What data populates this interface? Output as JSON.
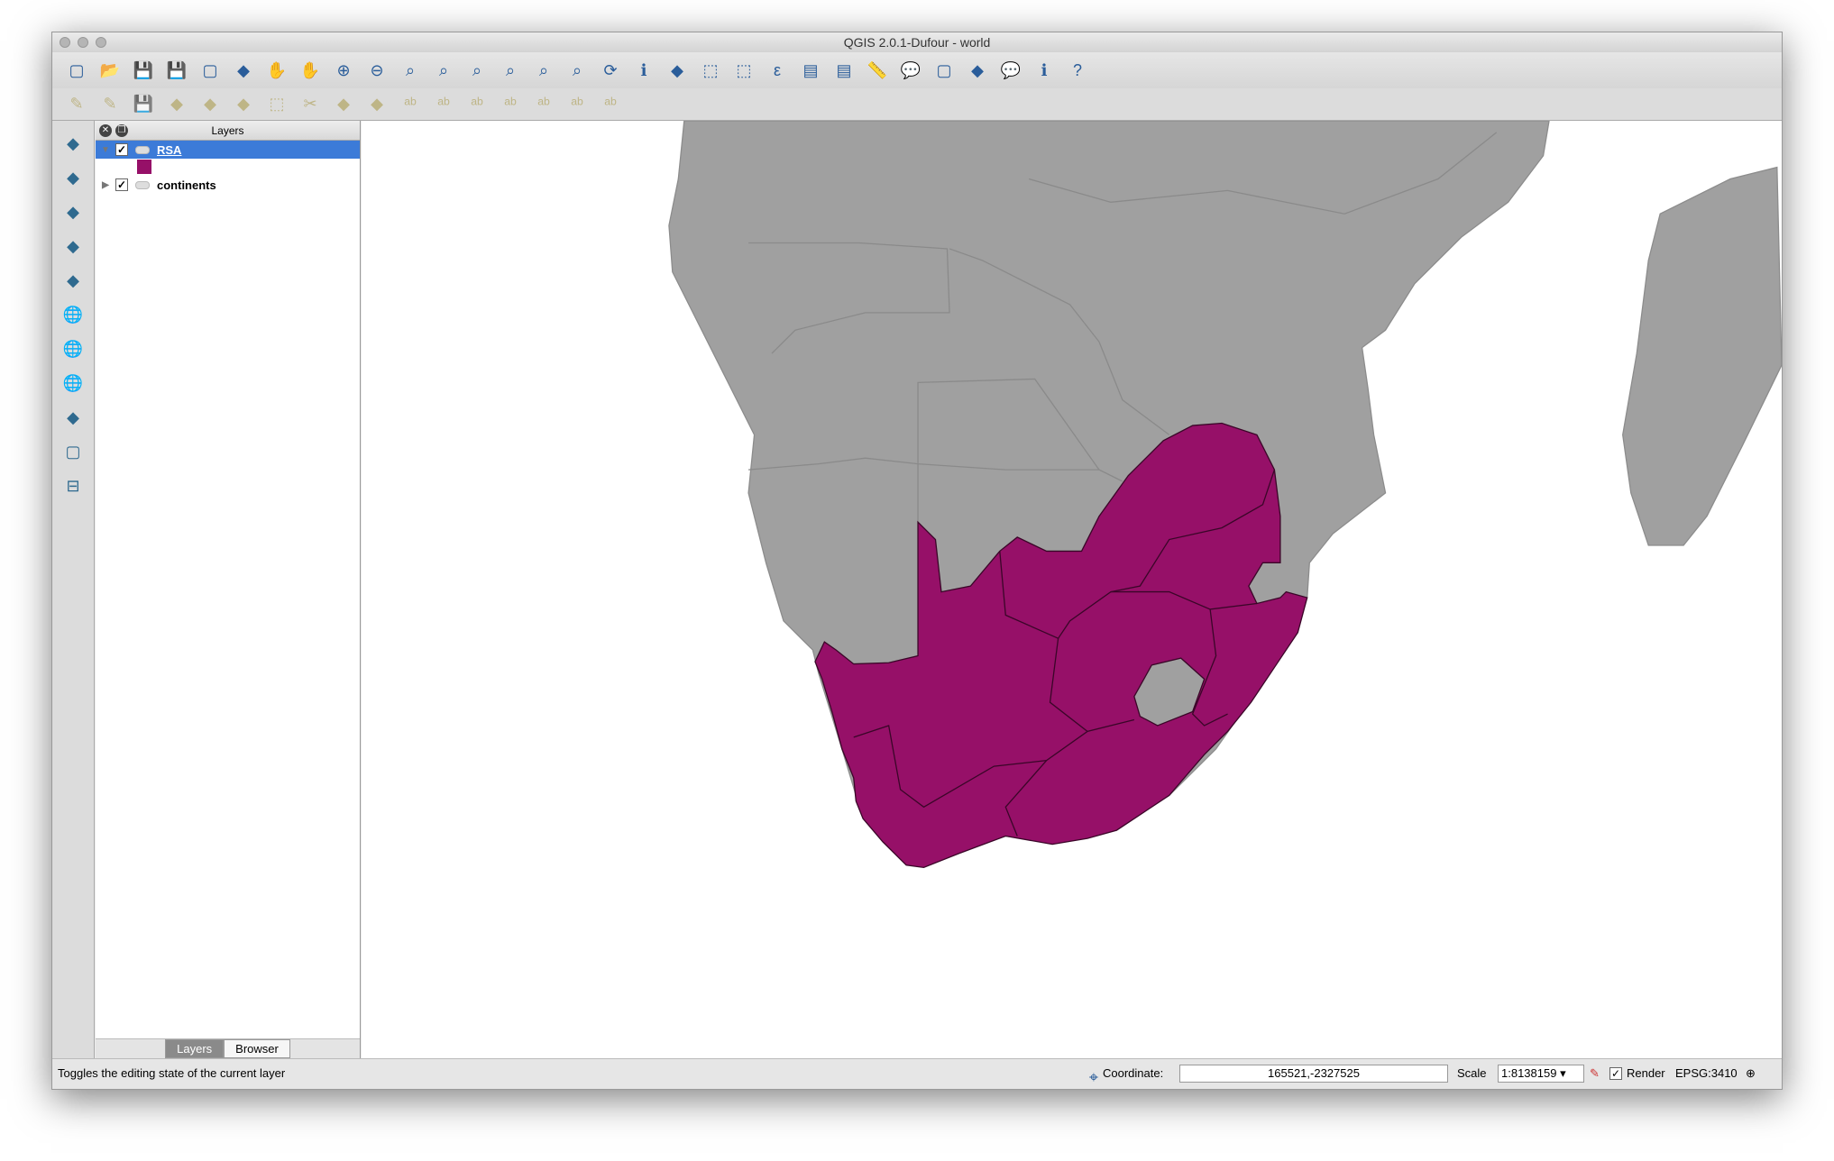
{
  "window": {
    "title": "QGIS 2.0.1-Dufour - world"
  },
  "toolbar1": {
    "icons": [
      "new-project-icon",
      "open-project-icon",
      "save-project-icon",
      "save-as-icon",
      "new-print-composer-icon",
      "composer-manager-icon",
      "pan-icon",
      "pan-to-selection-icon",
      "zoom-in-icon",
      "zoom-out-icon",
      "zoom-actual-icon",
      "zoom-full-icon",
      "zoom-to-selection-icon",
      "zoom-to-layer-icon",
      "zoom-last-icon",
      "zoom-next-icon",
      "refresh-icon",
      "identify-icon",
      "action-icon",
      "select-icon",
      "deselect-icon",
      "expression-icon",
      "attribute-table-icon",
      "statistics-icon",
      "measure-icon",
      "map-tips-icon",
      "new-bookmark-icon",
      "show-bookmarks-icon",
      "text-annotation-icon",
      "help-icon",
      "whats-this-icon"
    ]
  },
  "toolbar2": {
    "icons": [
      "toggle-editing-icon",
      "current-edits-icon",
      "save-edits-icon",
      "add-feature-icon",
      "move-feature-icon",
      "node-tool-icon",
      "delete-selected-icon",
      "cut-features-icon",
      "copy-features-icon",
      "paste-features-icon",
      "label-icon",
      "label-pin-icon",
      "label-show-hide-icon",
      "label-move-icon",
      "label-rotate-icon",
      "label-change-icon",
      "label-properties-icon"
    ]
  },
  "left_toolbar": {
    "icons": [
      "add-vector-layer-icon",
      "add-raster-layer-icon",
      "add-postgis-layer-icon",
      "add-spatialite-layer-icon",
      "add-mssql-layer-icon",
      "add-wms-layer-icon",
      "add-wcs-layer-icon",
      "add-wfs-layer-icon",
      "add-delimited-text-icon",
      "new-layer-icon",
      "remove-layer-icon"
    ]
  },
  "layers_panel": {
    "title": "Layers",
    "items": [
      {
        "name": "RSA",
        "checked": true,
        "selected": true,
        "color": "#961068"
      },
      {
        "name": "continents",
        "checked": true,
        "selected": false
      }
    ],
    "tabs": [
      "Layers",
      "Browser"
    ],
    "active_tab": "Layers"
  },
  "map": {
    "rsa_color": "#961068",
    "land_color": "#a0a0a0",
    "ocean_color": "#ffffff"
  },
  "status": {
    "message": "Toggles the editing state of the current layer",
    "coordinate_label": "Coordinate:",
    "coordinate": "165521,-2327525",
    "scale_label": "Scale",
    "scale": "1:8138159",
    "render_label": "Render",
    "render_checked": true,
    "crs": "EPSG:3410"
  }
}
